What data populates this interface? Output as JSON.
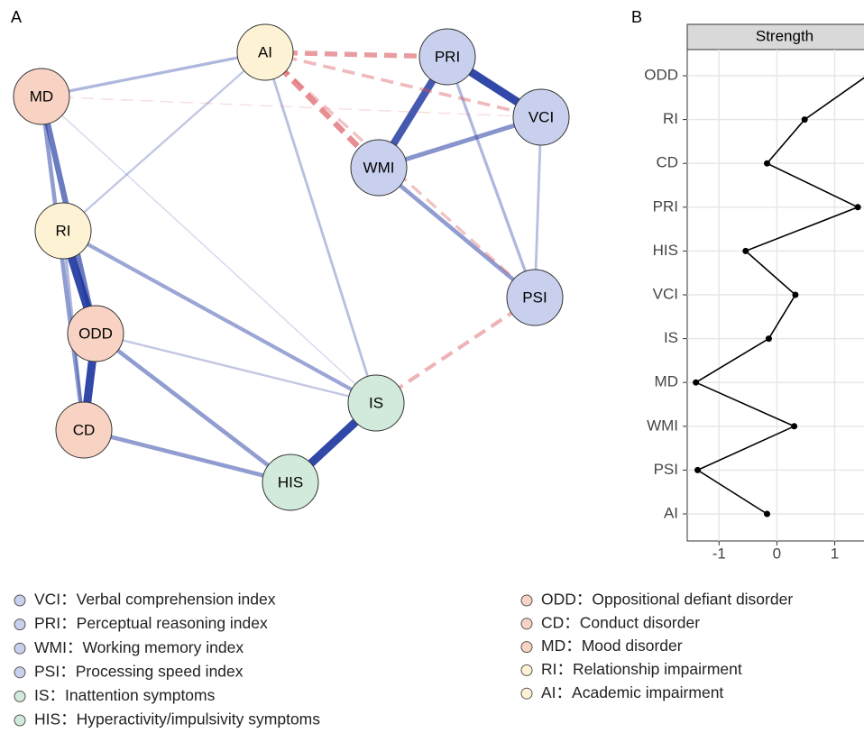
{
  "panel_labels": [
    "A",
    "B"
  ],
  "network": {
    "nodes": [
      {
        "label": "AI",
        "color": "#fdf3d4"
      },
      {
        "label": "PRI",
        "color": "#c9d0ee"
      },
      {
        "label": "VCI",
        "color": "#c9d0ee"
      },
      {
        "label": "WMI",
        "color": "#c9d0ee"
      },
      {
        "label": "PSI",
        "color": "#c9d0ee"
      },
      {
        "label": "MD",
        "color": "#f8d3c4"
      },
      {
        "label": "RI",
        "color": "#fdf3d4"
      },
      {
        "label": "ODD",
        "color": "#f8d3c4"
      },
      {
        "label": "CD",
        "color": "#f8d3c4"
      },
      {
        "label": "IS",
        "color": "#d1eadb"
      },
      {
        "label": "HIS",
        "color": "#d1eadb"
      }
    ],
    "edges": [
      {
        "source": "PRI",
        "target": "VCI",
        "weight": 0.9
      },
      {
        "source": "PRI",
        "target": "WMI",
        "weight": 0.8
      },
      {
        "source": "WMI",
        "target": "VCI",
        "weight": 0.45
      },
      {
        "source": "WMI",
        "target": "PSI",
        "weight": 0.4
      },
      {
        "source": "PRI",
        "target": "PSI",
        "weight": 0.25
      },
      {
        "source": "VCI",
        "target": "PSI",
        "weight": 0.2
      },
      {
        "source": "MD",
        "target": "ODD",
        "weight": 0.6
      },
      {
        "source": "MD",
        "target": "CD",
        "weight": 0.4
      },
      {
        "source": "RI",
        "target": "ODD",
        "weight": 0.9
      },
      {
        "source": "ODD",
        "target": "CD",
        "weight": 0.9
      },
      {
        "source": "RI",
        "target": "CD",
        "weight": 0.25
      },
      {
        "source": "AI",
        "target": "MD",
        "weight": 0.25
      },
      {
        "source": "AI",
        "target": "RI",
        "weight": 0.15
      },
      {
        "source": "AI",
        "target": "IS",
        "weight": 0.2
      },
      {
        "source": "RI",
        "target": "IS",
        "weight": 0.35
      },
      {
        "source": "ODD",
        "target": "IS",
        "weight": 0.15
      },
      {
        "source": "ODD",
        "target": "HIS",
        "weight": 0.4
      },
      {
        "source": "CD",
        "target": "HIS",
        "weight": 0.4
      },
      {
        "source": "IS",
        "target": "HIS",
        "weight": 0.9
      },
      {
        "source": "MD",
        "target": "IS",
        "weight": 0.05
      },
      {
        "source": "AI",
        "target": "PRI",
        "weight": -0.5
      },
      {
        "source": "AI",
        "target": "WMI",
        "weight": -0.6
      },
      {
        "source": "AI",
        "target": "VCI",
        "weight": -0.3
      },
      {
        "source": "AI",
        "target": "PSI",
        "weight": -0.25
      },
      {
        "source": "PSI",
        "target": "IS",
        "weight": -0.35
      },
      {
        "source": "MD",
        "target": "VCI",
        "weight": -0.05
      }
    ]
  },
  "legend": {
    "left": [
      {
        "text": "VCI：Verbal comprehension index",
        "color": "#c9d0ee"
      },
      {
        "text": "PRI：Perceptual reasoning index",
        "color": "#c9d0ee"
      },
      {
        "text": "WMI：Working memory index",
        "color": "#c9d0ee"
      },
      {
        "text": "PSI：Processing speed index",
        "color": "#c9d0ee"
      },
      {
        "text": "IS：Inattention symptoms",
        "color": "#d1eadb"
      },
      {
        "text": "HIS：Hyperactivity/impulsivity symptoms",
        "color": "#d1eadb"
      }
    ],
    "right": [
      {
        "text": "ODD：Oppositional defiant disorder",
        "color": "#f8d3c4"
      },
      {
        "text": "CD：Conduct disorder",
        "color": "#f8d3c4"
      },
      {
        "text": "MD：Mood disorder",
        "color": "#f8d3c4"
      },
      {
        "text": "RI：Relationship impairment",
        "color": "#fdf3d4"
      },
      {
        "text": "AI：Academic impairment",
        "color": "#fdf3d4"
      }
    ]
  },
  "chart_data": {
    "type": "line",
    "facet_label": "Strength",
    "categories": [
      "ODD",
      "RI",
      "CD",
      "PRI",
      "HIS",
      "VCI",
      "IS",
      "MD",
      "WMI",
      "PSI",
      "AI"
    ],
    "values": [
      1.56,
      0.48,
      -0.17,
      1.4,
      -0.54,
      0.32,
      -0.14,
      -1.4,
      0.3,
      -1.37,
      -0.17
    ],
    "color": "#000000",
    "xlim": [
      -1.55,
      1.6
    ],
    "xticks": [
      -1,
      0,
      1
    ],
    "grid": true
  }
}
